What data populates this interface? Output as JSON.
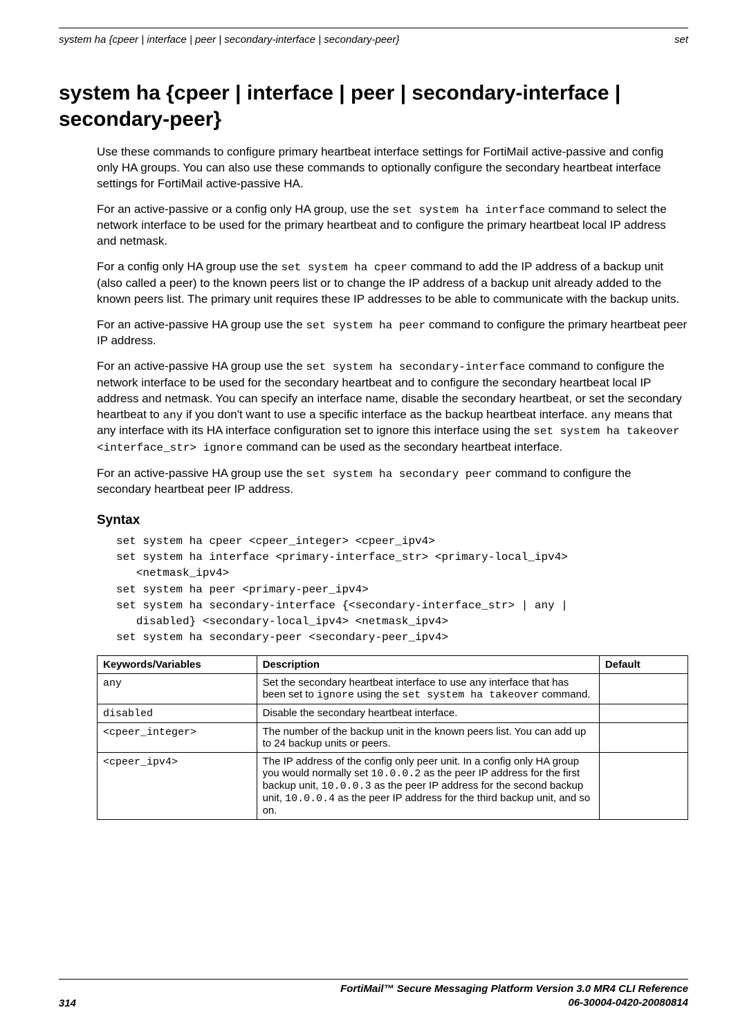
{
  "header": {
    "left": "system ha {cpeer | interface | peer | secondary-interface | secondary-peer}",
    "right": "set"
  },
  "title": "system ha {cpeer | interface | peer | secondary-interface | secondary-peer}",
  "paragraphs": {
    "p1": "Use these commands to configure primary heartbeat interface settings for FortiMail active-passive and config only HA groups. You can also use these commands to optionally configure the secondary heartbeat interface settings for FortiMail active-passive HA.",
    "p2a": "For an active-passive or a config only HA group, use the ",
    "p2code": "set system ha interface",
    "p2b": " command to select the network interface to be used for the primary heartbeat and to configure the primary heartbeat local IP address and netmask.",
    "p3a": "For a config only HA group use the ",
    "p3code": "set system ha cpeer",
    "p3b": " command to add the IP address of a backup unit (also called a peer) to the known peers list or to change the IP address of a backup unit already added to the known peers list. The primary unit requires these IP addresses to be able to communicate with the backup units.",
    "p4a": "For an active-passive HA group use the ",
    "p4code": "set system ha peer",
    "p4b": " command to configure the primary heartbeat peer IP address.",
    "p5a": "For an active-passive HA group use the ",
    "p5code1": "set system ha secondary-interface",
    "p5b": " command to configure the network interface to be used for the secondary heartbeat and to configure the secondary heartbeat local IP address and netmask. You can specify an interface name, disable the secondary heartbeat, or set the secondary heartbeat to ",
    "p5code2": "any",
    "p5c": " if you don't want to use a specific interface as the backup heartbeat interface. ",
    "p5code3": "any",
    "p5d": " means that any interface with its HA interface configuration set to ignore this interface using the ",
    "p5code4": "set system ha takeover <interface_str> ignore",
    "p5e": " command can be used as the secondary heartbeat interface.",
    "p6a": "For an active-passive HA group use the ",
    "p6code": "set system ha secondary peer",
    "p6b": " command to configure the secondary heartbeat peer IP address."
  },
  "syntax": {
    "heading": "Syntax",
    "block": "set system ha cpeer <cpeer_integer> <cpeer_ipv4>\nset system ha interface <primary-interface_str> <primary-local_ipv4>\n   <netmask_ipv4>\nset system ha peer <primary-peer_ipv4>\nset system ha secondary-interface {<secondary-interface_str> | any |\n   disabled} <secondary-local_ipv4> <netmask_ipv4>\nset system ha secondary-peer <secondary-peer_ipv4>"
  },
  "table": {
    "headers": {
      "kw": "Keywords/Variables",
      "desc": "Description",
      "def": "Default"
    },
    "rows": {
      "r1": {
        "kw": "any",
        "desc_a": "Set the secondary heartbeat interface to use any interface that has been set to ",
        "desc_code1": "ignore",
        "desc_b": " using the ",
        "desc_code2": "set system ha takeover",
        "desc_c": " command.",
        "def": ""
      },
      "r2": {
        "kw": "disabled",
        "desc": "Disable the secondary heartbeat interface.",
        "def": ""
      },
      "r3": {
        "kw": "<cpeer_integer>",
        "desc": "The number of the backup unit in the known peers list. You can add up to 24 backup units or peers.",
        "def": ""
      },
      "r4": {
        "kw": "<cpeer_ipv4>",
        "desc_a": "The IP address of the config only peer unit. In a config only HA group you would normally set ",
        "desc_code1": "10.0.0.2",
        "desc_b": " as the peer IP address for the first backup unit, ",
        "desc_code2": "10.0.0.3",
        "desc_c": " as the peer IP address for the second backup unit, ",
        "desc_code3": "10.0.0.4",
        "desc_d": " as the peer IP address for the third backup unit, and so on.",
        "def": ""
      }
    }
  },
  "footer": {
    "page": "314",
    "line1": "FortiMail™ Secure Messaging Platform Version 3.0 MR4 CLI Reference",
    "line2": "06-30004-0420-20080814"
  }
}
